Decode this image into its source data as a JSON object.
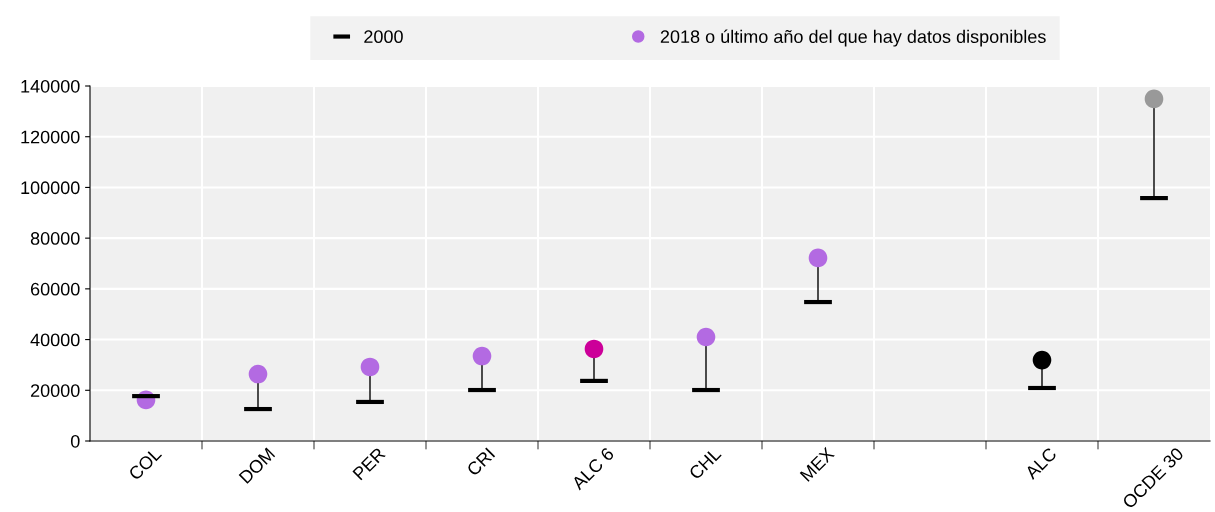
{
  "chart_data": {
    "type": "scatter",
    "categories": [
      "COL",
      "DOM",
      "PER",
      "CRI",
      "ALC 6",
      "CHL",
      "MEX",
      null,
      "ALC",
      "OCDE 30"
    ],
    "series": [
      {
        "name": "2018 o último año del que hay datos disponibles",
        "marker": "circle",
        "color": "#b36ae2",
        "colors": [
          "#b36ae2",
          "#b36ae2",
          "#b36ae2",
          "#b36ae2",
          "#cc0099",
          "#b36ae2",
          "#b36ae2",
          "#b36ae2",
          "#000000",
          "#999999"
        ],
        "values": [
          16200,
          26400,
          29200,
          33500,
          36300,
          41000,
          72200,
          null,
          31900,
          134900
        ],
        "errors": [
          [
            16200,
            17700
          ],
          [
            12600,
            26400
          ],
          [
            15400,
            29200
          ],
          [
            20100,
            33500
          ],
          [
            23700,
            36300
          ],
          [
            20100,
            41000
          ],
          [
            54800,
            72200
          ],
          null,
          [
            20900,
            31900
          ],
          [
            95800,
            134900
          ]
        ]
      }
    ],
    "annotations": [
      "2000"
    ],
    "ylim": [
      0,
      140000
    ],
    "yticks": [
      0,
      20000,
      40000,
      60000,
      80000,
      100000,
      120000,
      140000
    ],
    "grid": true,
    "legend": "top"
  }
}
